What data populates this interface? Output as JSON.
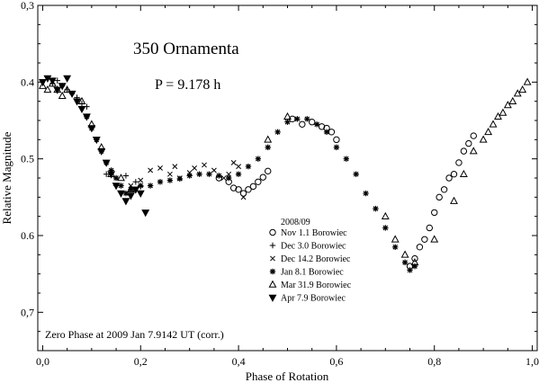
{
  "chart_data": {
    "type": "scatter",
    "title": "350 Ornamenta",
    "subtitle": "P = 9.178 h",
    "xlabel": "Phase of Rotation",
    "ylabel": "Relative Magnitude",
    "annotation": "Zero Phase at 2009 Jan 7.9142 UT (corr.)",
    "xlim": [
      -0.01,
      1.01
    ],
    "ylim": [
      0.3,
      0.75
    ],
    "y_inverted": true,
    "grid": false,
    "legend_title": "2008/09",
    "legend_position": "lower-center",
    "x_ticks": [
      {
        "v": 0.0,
        "label": "0,0"
      },
      {
        "v": 0.2,
        "label": "0,2"
      },
      {
        "v": 0.4,
        "label": "0,4"
      },
      {
        "v": 0.6,
        "label": "0,6"
      },
      {
        "v": 0.8,
        "label": "0,8"
      },
      {
        "v": 1.0,
        "label": "1,0"
      }
    ],
    "y_ticks": [
      {
        "v": 0.3,
        "label": "0,3"
      },
      {
        "v": 0.4,
        "label": "0.4"
      },
      {
        "v": 0.5,
        "label": "0.5"
      },
      {
        "v": 0.6,
        "label": "0.6"
      },
      {
        "v": 0.7,
        "label": "0,7"
      }
    ],
    "series": [
      {
        "name": "Nov 1.1 Borowiec",
        "marker": "circle",
        "x": [
          0.36,
          0.38,
          0.39,
          0.4,
          0.41,
          0.42,
          0.43,
          0.44,
          0.45,
          0.46,
          0.51,
          0.53,
          0.55,
          0.57,
          0.58,
          0.59,
          0.6,
          0.75,
          0.76,
          0.77,
          0.78,
          0.79,
          0.8,
          0.81,
          0.82,
          0.83,
          0.84,
          0.85,
          0.86,
          0.87,
          0.88
        ],
        "y": [
          0.525,
          0.53,
          0.538,
          0.54,
          0.545,
          0.54,
          0.536,
          0.53,
          0.524,
          0.516,
          0.448,
          0.455,
          0.452,
          0.458,
          0.46,
          0.465,
          0.475,
          0.64,
          0.63,
          0.615,
          0.605,
          0.59,
          0.57,
          0.55,
          0.54,
          0.525,
          0.52,
          0.505,
          0.49,
          0.48,
          0.47
        ]
      },
      {
        "name": "Dec 3.0 Borowiec",
        "marker": "plus",
        "x": [
          0.02,
          0.03,
          0.04,
          0.05,
          0.06,
          0.07,
          0.08,
          0.09,
          0.13,
          0.15,
          0.17,
          0.19,
          0.2
        ],
        "y": [
          0.402,
          0.398,
          0.405,
          0.41,
          0.415,
          0.42,
          0.428,
          0.432,
          0.52,
          0.535,
          0.522,
          0.53,
          0.536
        ]
      },
      {
        "name": "Dec 14.2 Borowiec",
        "marker": "cross",
        "x": [
          0.18,
          0.2,
          0.22,
          0.24,
          0.26,
          0.27,
          0.28,
          0.3,
          0.31,
          0.33,
          0.35,
          0.37,
          0.38,
          0.39,
          0.4,
          0.41
        ],
        "y": [
          0.535,
          0.528,
          0.515,
          0.512,
          0.52,
          0.51,
          0.525,
          0.518,
          0.512,
          0.508,
          0.515,
          0.525,
          0.52,
          0.505,
          0.51,
          0.55
        ]
      },
      {
        "name": "Jan 8.1 Borowiec",
        "marker": "asterisk",
        "x": [
          0.09,
          0.1,
          0.11,
          0.12,
          0.13,
          0.14,
          0.15,
          0.16,
          0.17,
          0.18,
          0.2,
          0.22,
          0.24,
          0.26,
          0.28,
          0.3,
          0.32,
          0.34,
          0.36,
          0.38,
          0.4,
          0.42,
          0.44,
          0.46,
          0.48,
          0.5,
          0.52,
          0.54,
          0.56,
          0.58,
          0.6,
          0.62,
          0.64,
          0.66,
          0.68,
          0.7,
          0.72,
          0.74,
          0.75,
          0.76
        ],
        "y": [
          0.445,
          0.46,
          0.475,
          0.49,
          0.505,
          0.515,
          0.525,
          0.535,
          0.545,
          0.54,
          0.535,
          0.535,
          0.53,
          0.528,
          0.526,
          0.522,
          0.52,
          0.52,
          0.522,
          0.525,
          0.52,
          0.51,
          0.5,
          0.485,
          0.465,
          0.452,
          0.448,
          0.448,
          0.455,
          0.465,
          0.485,
          0.5,
          0.52,
          0.545,
          0.565,
          0.59,
          0.615,
          0.635,
          0.645,
          0.64
        ]
      },
      {
        "name": "Mar 31.9 Borowiec",
        "marker": "triangle",
        "x": [
          0.0,
          0.01,
          0.02,
          0.03,
          0.04,
          0.05,
          0.08,
          0.1,
          0.12,
          0.14,
          0.16,
          0.18,
          0.46,
          0.5,
          0.7,
          0.72,
          0.74,
          0.76,
          0.8,
          0.84,
          0.86,
          0.88,
          0.9,
          0.91,
          0.92,
          0.93,
          0.94,
          0.95,
          0.96,
          0.97,
          0.98,
          0.99
        ],
        "y": [
          0.405,
          0.41,
          0.402,
          0.41,
          0.418,
          0.41,
          0.425,
          0.455,
          0.485,
          0.52,
          0.525,
          0.54,
          0.475,
          0.445,
          0.575,
          0.605,
          0.625,
          0.635,
          0.605,
          0.555,
          0.52,
          0.49,
          0.475,
          0.465,
          0.455,
          0.445,
          0.44,
          0.43,
          0.425,
          0.415,
          0.41,
          0.4
        ]
      },
      {
        "name": "Apr 7.9 Borowiec",
        "marker": "triangle-down",
        "x": [
          0.0,
          0.01,
          0.02,
          0.03,
          0.04,
          0.05,
          0.06,
          0.07,
          0.08,
          0.09,
          0.1,
          0.11,
          0.12,
          0.13,
          0.14,
          0.15,
          0.16,
          0.17,
          0.18,
          0.19,
          0.2,
          0.21
        ],
        "y": [
          0.4,
          0.395,
          0.398,
          0.41,
          0.405,
          0.395,
          0.415,
          0.425,
          0.435,
          0.445,
          0.46,
          0.475,
          0.49,
          0.505,
          0.52,
          0.535,
          0.545,
          0.555,
          0.548,
          0.54,
          0.545,
          0.57
        ]
      }
    ]
  }
}
